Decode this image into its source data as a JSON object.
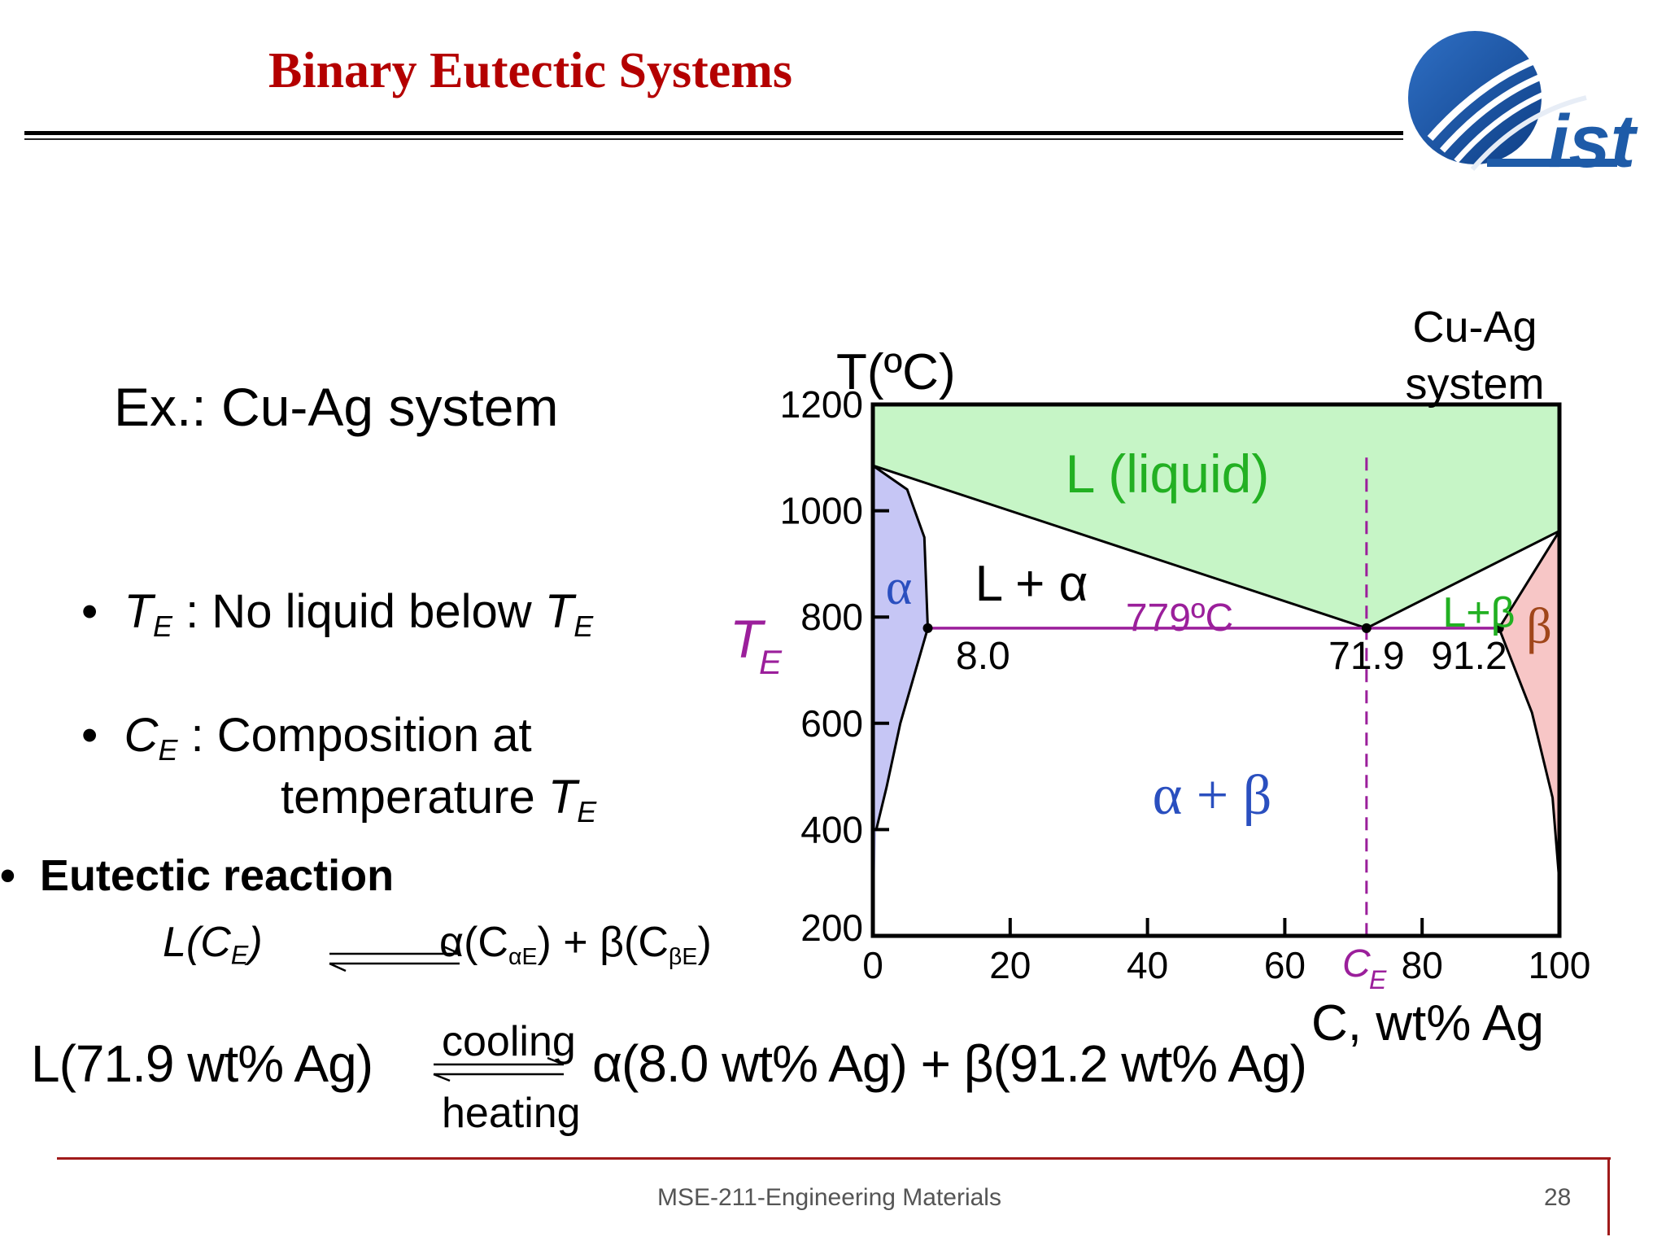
{
  "slide": {
    "title": "Binary Eutectic Systems",
    "example": "Ex.:  Cu-Ag system",
    "bullet_te_sym": "T",
    "bullet_te_sub": "E",
    "bullet_te_text": " :  No liquid below ",
    "bullet_ce_sym": "C",
    "bullet_ce_sub": "E",
    "bullet_ce_text": " :  Composition at",
    "bullet_ce_text2": "temperature ",
    "bullet_marker": "•",
    "eutectic_heading": "Eutectic reaction",
    "reaction_small_left": "L(C",
    "reaction_small_left_sub": "E",
    "reaction_small_left_end": ")",
    "reaction_small_right": "α(C",
    "reaction_small_right_sub": "αE",
    "reaction_small_right_mid": ") + β(C",
    "reaction_small_right_sub2": "βE",
    "reaction_small_right_end": ")",
    "reaction_big_left": "L(71.9 wt% Ag)",
    "reaction_big_right": "α(8.0 wt% Ag) + β(91.2 wt% Ag)",
    "cooling": "cooling",
    "heating": "heating",
    "footer": "MSE-211-Engineering Materials",
    "page": "28"
  },
  "logo": {
    "text": "ist",
    "colors": [
      "#1e5ba8",
      "#e8eef6"
    ]
  },
  "colors": {
    "title": "#b40000",
    "liquid": "#c6f5c6",
    "alpha": "#c6c6f5",
    "beta": "#f7c6c6",
    "eutectic_line": "#9b1f9b",
    "green": "#22b022",
    "blue": "#2a4fbf",
    "brown": "#a0461a"
  },
  "chart_data": {
    "type": "phase-diagram",
    "system_label_1": "Cu-Ag",
    "system_label_2": "system",
    "ylabel": "T(ºC)",
    "xlabel": "C, wt% Ag",
    "xlim": [
      0,
      100
    ],
    "ylim": [
      200,
      1200
    ],
    "x_ticks": [
      "0",
      "20",
      "40",
      "60",
      "80",
      "100"
    ],
    "y_ticks": [
      "1200",
      "1000",
      "800",
      "600",
      "400",
      "200"
    ],
    "x_ticks_values": [
      0,
      20,
      40,
      60,
      80,
      100
    ],
    "y_ticks_values": [
      1200,
      1000,
      800,
      600,
      400,
      200
    ],
    "eutectic_temperature": 779,
    "eutectic_temperature_label": "779ºC",
    "eutectic_composition": 71.9,
    "eutectic_composition_label": "71.9",
    "alpha_max_solubility": 8.0,
    "alpha_max_label": "8.0",
    "beta_max_solubility": 91.2,
    "beta_max_label": "91.2",
    "te_label": "T",
    "te_label_sub": "E",
    "ce_label": "C",
    "ce_label_sub": "E",
    "regions": {
      "liquid": "L (liquid)",
      "l_plus_alpha": "L + α",
      "l_plus_beta": "L+β",
      "alpha": "α",
      "beta": "β",
      "alpha_plus_beta": "α + β"
    },
    "liquidus_left": [
      [
        0,
        1085
      ],
      [
        71.9,
        779
      ]
    ],
    "liquidus_right": [
      [
        71.9,
        779
      ],
      [
        100,
        962
      ]
    ],
    "alpha_solvus": [
      [
        0,
        1085
      ],
      [
        5,
        1040
      ],
      [
        7.5,
        950
      ],
      [
        8.0,
        779
      ],
      [
        4,
        600
      ],
      [
        2,
        480
      ],
      [
        0.5,
        400
      ]
    ],
    "beta_solvus": [
      [
        100,
        962
      ],
      [
        91.2,
        779
      ],
      [
        96,
        620
      ],
      [
        99,
        460
      ],
      [
        100,
        300
      ]
    ]
  }
}
